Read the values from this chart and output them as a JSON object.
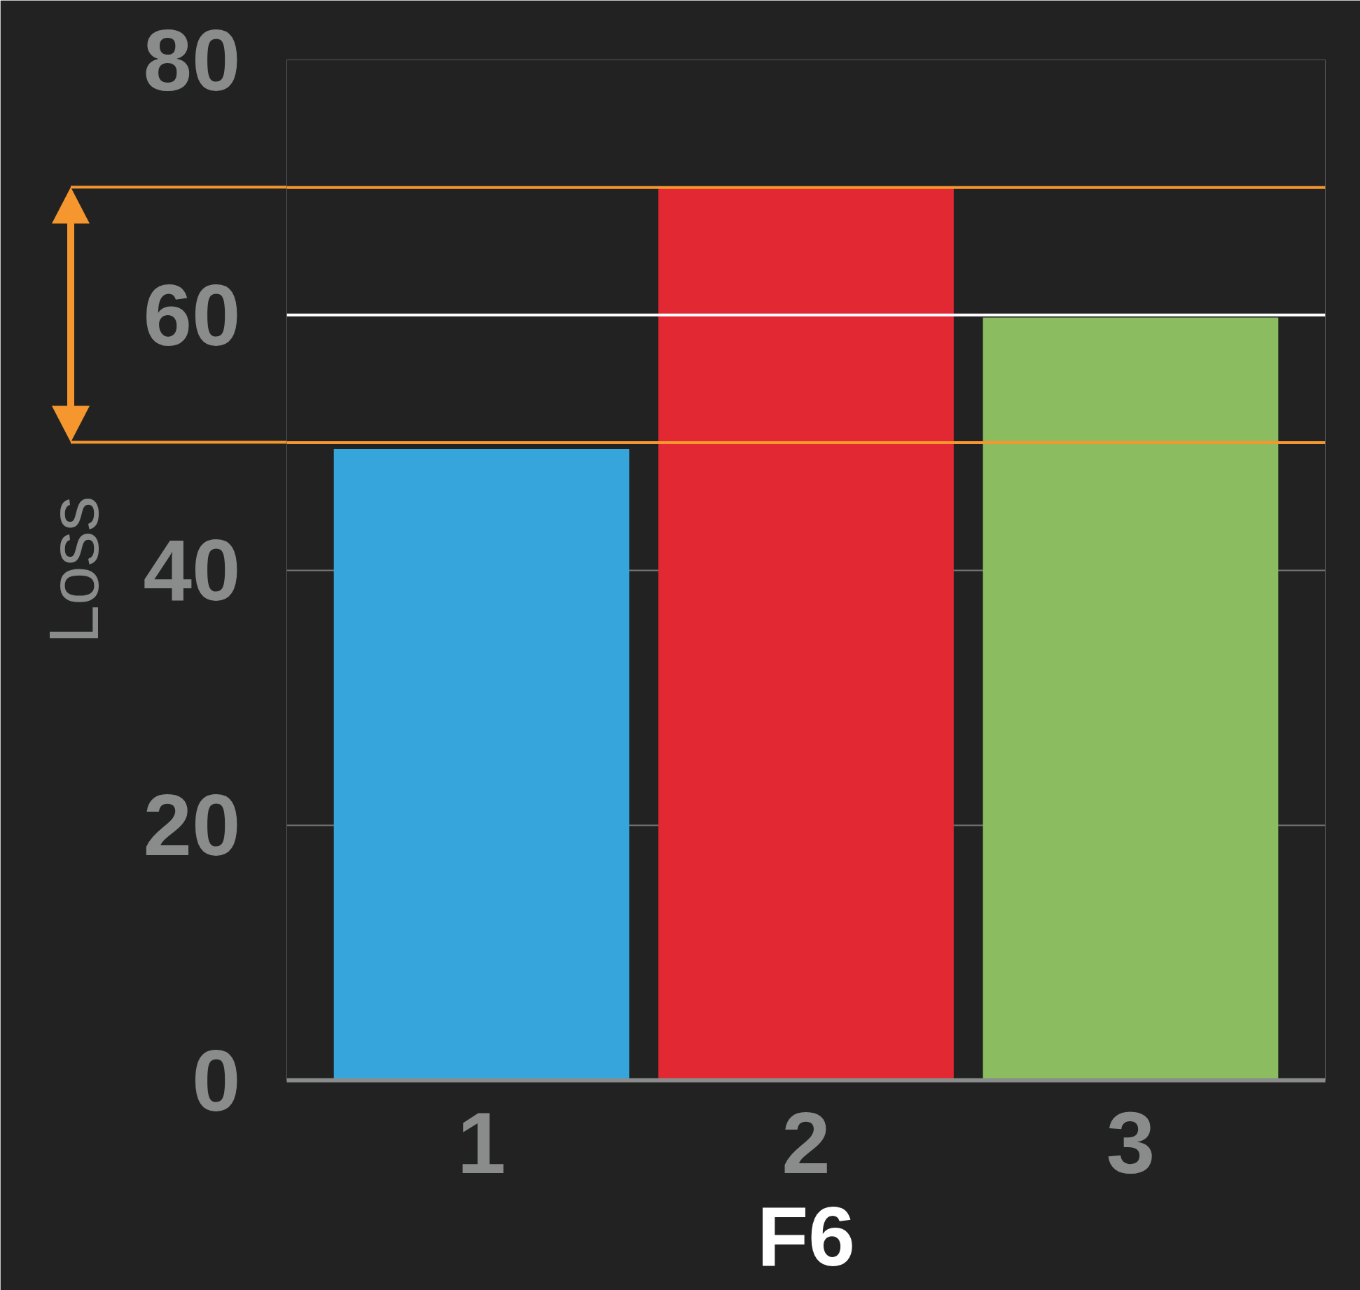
{
  "chart_data": {
    "type": "bar",
    "xlabel": "F6",
    "ylabel": "Loss",
    "categories": [
      "1",
      "2",
      "3"
    ],
    "values": [
      49.5,
      70,
      59.8
    ],
    "colors": [
      "#35a5db",
      "#e22933",
      "#8bbd60"
    ],
    "ylim": [
      0,
      80
    ],
    "yticks": [
      0,
      20,
      40,
      60,
      80
    ],
    "grid": "y",
    "ref_lines": [
      {
        "axis": "y",
        "value": 70,
        "label": null,
        "color": "#f5962e"
      },
      {
        "axis": "y",
        "value": 60,
        "label": null,
        "color": "#ffffff"
      },
      {
        "axis": "y",
        "value": 50,
        "label": null,
        "color": "#f5962e"
      }
    ]
  }
}
